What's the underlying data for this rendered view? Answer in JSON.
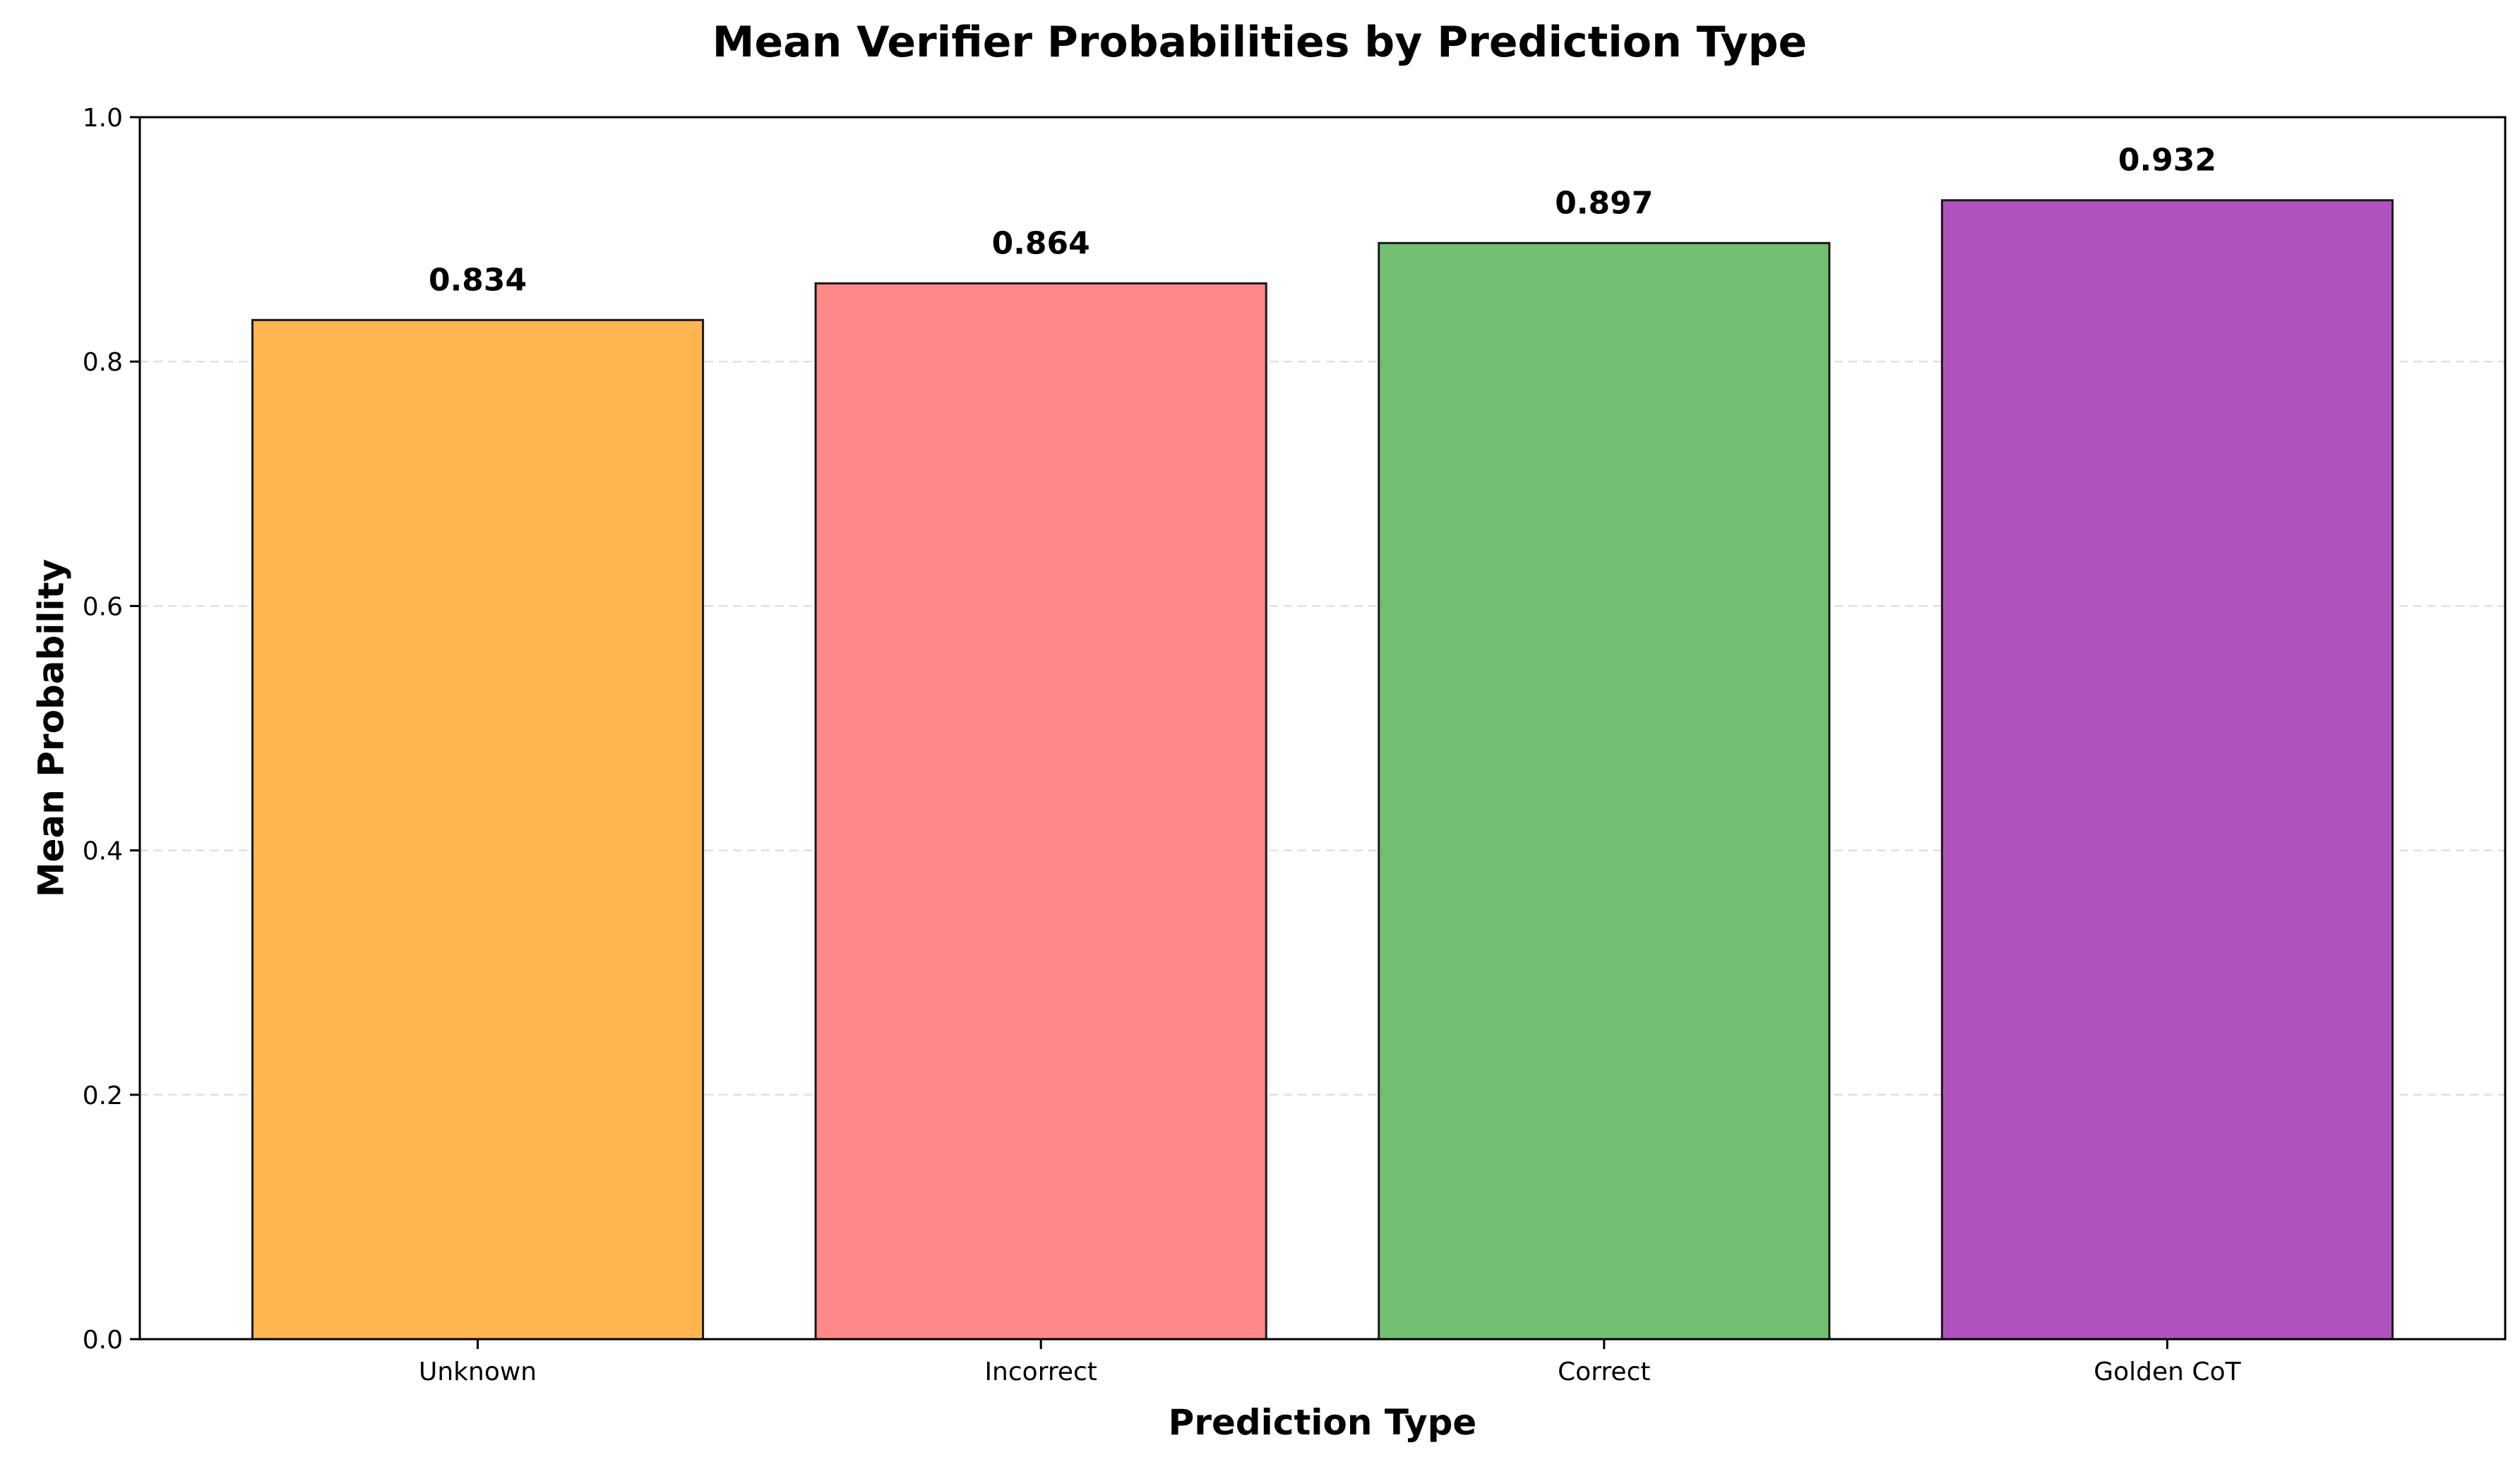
{
  "chart_data": {
    "type": "bar",
    "title": "Mean Verifier Probabilities by Prediction Type",
    "xlabel": "Prediction Type",
    "ylabel": "Mean Probability",
    "categories": [
      "Unknown",
      "Incorrect",
      "Correct",
      "Golden CoT"
    ],
    "values": [
      0.834,
      0.864,
      0.897,
      0.932
    ],
    "value_labels": [
      "0.834",
      "0.864",
      "0.897",
      "0.932"
    ],
    "colors": [
      "#FFB651",
      "#FF8888",
      "#72BF72",
      "#B052BE"
    ],
    "edge_color": "#1a1a1a",
    "ylim": [
      0,
      1.0
    ],
    "yticks": [
      0.0,
      0.2,
      0.4,
      0.6,
      0.8,
      1.0
    ],
    "ytick_labels": [
      "0.0",
      "0.2",
      "0.4",
      "0.6",
      "0.8",
      "1.0"
    ],
    "grid": "y-dashed",
    "legend": "none"
  }
}
